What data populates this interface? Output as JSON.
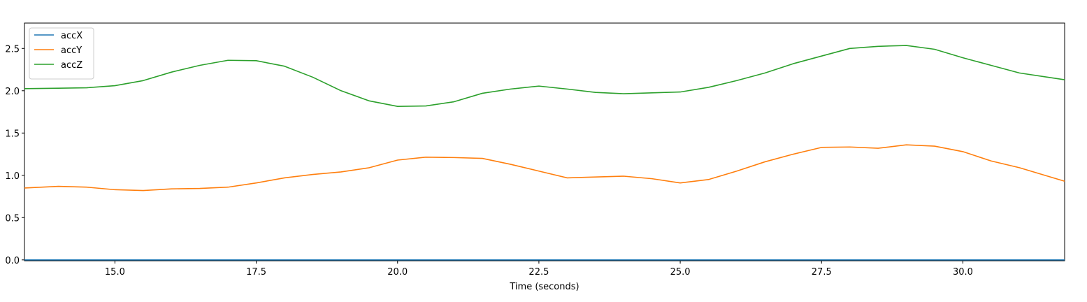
{
  "chart_data": {
    "type": "line",
    "title": "",
    "xlabel": "Time (seconds)",
    "ylabel": "",
    "xlim": [
      13.4,
      31.8
    ],
    "ylim": [
      -0.01,
      2.8
    ],
    "grid": false,
    "legend_position": "top-left",
    "x_ticks": [
      15.0,
      17.5,
      20.0,
      22.5,
      25.0,
      27.5,
      30.0
    ],
    "x_tick_labels": [
      "15.0",
      "17.5",
      "20.0",
      "22.5",
      "25.0",
      "27.5",
      "30.0"
    ],
    "y_ticks": [
      0.0,
      0.5,
      1.0,
      1.5,
      2.0,
      2.5
    ],
    "y_tick_labels": [
      "0.0",
      "0.5",
      "1.0",
      "1.5",
      "2.0",
      "2.5"
    ],
    "x": [
      13.4,
      14.0,
      14.5,
      15.0,
      15.5,
      16.0,
      16.5,
      17.0,
      17.5,
      18.0,
      18.5,
      19.0,
      19.5,
      20.0,
      20.5,
      21.0,
      21.5,
      22.0,
      22.5,
      23.0,
      23.5,
      24.0,
      24.5,
      25.0,
      25.5,
      26.0,
      26.5,
      27.0,
      27.5,
      28.0,
      28.5,
      29.0,
      29.5,
      30.0,
      30.5,
      31.0,
      31.5,
      31.8
    ],
    "series": [
      {
        "name": "accX",
        "color": "#1f77b4",
        "values": [
          0.0,
          0.0,
          0.0,
          0.0,
          0.0,
          0.0,
          0.0,
          0.0,
          0.0,
          0.0,
          0.0,
          0.0,
          0.0,
          0.0,
          0.0,
          0.0,
          0.0,
          0.0,
          0.0,
          0.0,
          0.0,
          0.0,
          0.0,
          0.0,
          0.0,
          0.0,
          0.0,
          0.0,
          0.0,
          0.0,
          0.0,
          0.0,
          0.0,
          0.0,
          0.0,
          0.0,
          0.0,
          0.0
        ]
      },
      {
        "name": "accY",
        "color": "#ff7f0e",
        "values": [
          0.85,
          0.87,
          0.86,
          0.83,
          0.82,
          0.84,
          0.845,
          0.86,
          0.91,
          0.97,
          1.01,
          1.04,
          1.09,
          1.18,
          1.215,
          1.21,
          1.2,
          1.13,
          1.05,
          0.97,
          0.98,
          0.99,
          0.96,
          0.91,
          0.95,
          1.05,
          1.16,
          1.25,
          1.33,
          1.335,
          1.32,
          1.36,
          1.345,
          1.28,
          1.17,
          1.09,
          0.99,
          0.93
        ]
      },
      {
        "name": "accZ",
        "color": "#2ca02c",
        "values": [
          2.025,
          2.03,
          2.035,
          2.06,
          2.12,
          2.22,
          2.3,
          2.36,
          2.355,
          2.29,
          2.16,
          2.0,
          1.88,
          1.815,
          1.82,
          1.87,
          1.97,
          2.02,
          2.055,
          2.02,
          1.98,
          1.965,
          1.975,
          1.985,
          2.04,
          2.12,
          2.21,
          2.32,
          2.41,
          2.5,
          2.525,
          2.535,
          2.49,
          2.39,
          2.3,
          2.21,
          2.16,
          2.13
        ]
      }
    ]
  }
}
